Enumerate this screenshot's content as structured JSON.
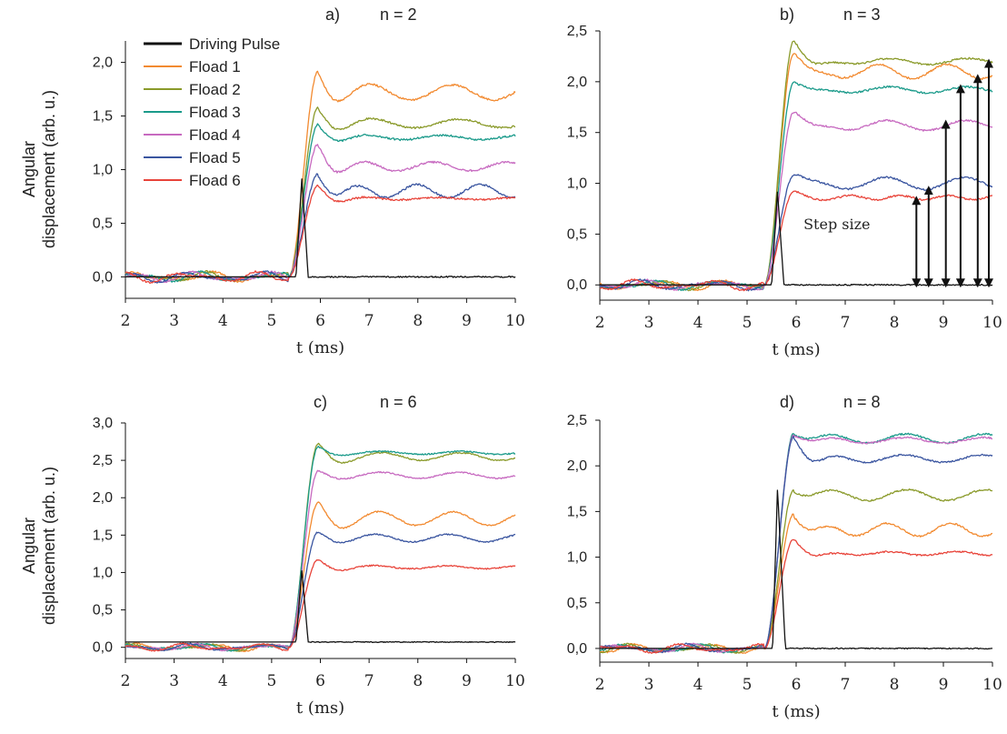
{
  "chart_data": [
    {
      "type": "line",
      "panel_label": "a)",
      "title": "n = 2",
      "xlabel": "t (ms)",
      "ylabel": [
        "Angular",
        "displacement (arb. u.)"
      ],
      "xlim": [
        2,
        10
      ],
      "ylim": [
        -0.2,
        2.2
      ],
      "x_ticks": [
        2,
        3,
        4,
        5,
        6,
        7,
        8,
        9,
        10
      ],
      "y_ticks": [
        0.0,
        0.5,
        1.0,
        1.5,
        2.0
      ],
      "y_tick_labels": [
        "0,0",
        "0,5",
        "1,0",
        "1,5",
        "2,0"
      ],
      "legend": {
        "placement": "top-left",
        "entries": [
          "Driving Pulse",
          "Fload 1",
          "Fload 2",
          "Fload 3",
          "Fload 4",
          "Fload 5",
          "Fload 6"
        ]
      },
      "series": [
        {
          "name": "Driving Pulse",
          "color": "#111111",
          "peak": 0.92,
          "rise_start": 5.5,
          "peak_time": 5.62,
          "fall_end": 5.75,
          "baseline": 0.0
        },
        {
          "name": "Fload 1",
          "color": "#f28a30",
          "steady": 1.72,
          "overshoot": 1.92,
          "osc_amp": 0.07,
          "osc_period": 1.7
        },
        {
          "name": "Fload 2",
          "color": "#8a9a2a",
          "steady": 1.43,
          "overshoot": 1.58,
          "osc_amp": 0.04,
          "osc_period": 1.8
        },
        {
          "name": "Fload 3",
          "color": "#1a9a8a",
          "steady": 1.3,
          "overshoot": 1.42,
          "osc_amp": 0.02,
          "osc_period": 1.6
        },
        {
          "name": "Fload 4",
          "color": "#c76ac0",
          "steady": 1.03,
          "overshoot": 1.24,
          "osc_amp": 0.04,
          "osc_period": 1.5
        },
        {
          "name": "Fload 5",
          "color": "#3a55a0",
          "steady": 0.8,
          "overshoot": 0.96,
          "osc_amp": 0.06,
          "osc_period": 1.3
        },
        {
          "name": "Fload 6",
          "color": "#e8443a",
          "steady": 0.73,
          "overshoot": 0.85,
          "osc_amp": 0.01,
          "osc_period": 1.6
        }
      ]
    },
    {
      "type": "line",
      "panel_label": "b)",
      "title": "n = 3",
      "xlabel": "t (ms)",
      "xlim": [
        2,
        10
      ],
      "ylim": [
        -0.15,
        2.5
      ],
      "x_ticks": [
        2,
        3,
        4,
        5,
        6,
        7,
        8,
        9,
        10
      ],
      "y_ticks": [
        0.0,
        0.5,
        1.0,
        1.5,
        2.0,
        2.5
      ],
      "y_tick_labels": [
        "0,0",
        "0,5",
        "1,0",
        "1,5",
        "2,0",
        "2,5"
      ],
      "annotation": "Step size",
      "step_arrows": [
        {
          "t": 8.45,
          "value": 0.85
        },
        {
          "t": 8.7,
          "value": 0.95
        },
        {
          "t": 9.05,
          "value": 1.6
        },
        {
          "t": 9.35,
          "value": 1.95
        },
        {
          "t": 9.7,
          "value": 2.05
        },
        {
          "t": 10.0,
          "value": 2.2
        }
      ],
      "series": [
        {
          "name": "Driving Pulse",
          "color": "#111111",
          "peak": 0.92,
          "rise_start": 5.5,
          "peak_time": 5.62,
          "fall_end": 5.75,
          "baseline": 0.0
        },
        {
          "name": "Fload 1",
          "color": "#f28a30",
          "steady": 2.1,
          "overshoot": 2.28,
          "osc_amp": 0.07,
          "osc_period": 1.4
        },
        {
          "name": "Fload 2",
          "color": "#8a9a2a",
          "steady": 2.2,
          "overshoot": 2.4,
          "osc_amp": 0.03,
          "osc_period": 1.6
        },
        {
          "name": "Fload 3",
          "color": "#1a9a8a",
          "steady": 1.92,
          "overshoot": 1.99,
          "osc_amp": 0.03,
          "osc_period": 1.6
        },
        {
          "name": "Fload 4",
          "color": "#c76ac0",
          "steady": 1.57,
          "overshoot": 1.7,
          "osc_amp": 0.05,
          "osc_period": 1.6
        },
        {
          "name": "Fload 5",
          "color": "#3a55a0",
          "steady": 1.0,
          "overshoot": 1.08,
          "osc_amp": 0.06,
          "osc_period": 1.6
        },
        {
          "name": "Fload 6",
          "color": "#e8443a",
          "steady": 0.86,
          "overshoot": 0.92,
          "osc_amp": 0.02,
          "osc_period": 1.0
        }
      ]
    },
    {
      "type": "line",
      "panel_label": "c)",
      "title": "n = 6",
      "xlabel": "t (ms)",
      "ylabel": [
        "Angular",
        "displacement (arb. u.)"
      ],
      "xlim": [
        2,
        10
      ],
      "ylim": [
        -0.15,
        3.0
      ],
      "x_ticks": [
        2,
        3,
        4,
        5,
        6,
        7,
        8,
        9,
        10
      ],
      "y_ticks": [
        0.0,
        0.5,
        1.0,
        1.5,
        2.0,
        2.5,
        3.0
      ],
      "y_tick_labels": [
        "0,0",
        "0,5",
        "1,0",
        "1,5",
        "2,0",
        "2,5",
        "3,0"
      ],
      "series": [
        {
          "name": "Driving Pulse",
          "color": "#111111",
          "peak": 1.03,
          "rise_start": 5.5,
          "peak_time": 5.62,
          "fall_end": 5.75,
          "baseline": 0.07
        },
        {
          "name": "Fload 1",
          "color": "#f28a30",
          "steady": 1.72,
          "overshoot": 1.93,
          "osc_amp": 0.09,
          "osc_period": 1.5
        },
        {
          "name": "Fload 2",
          "color": "#8a9a2a",
          "steady": 2.55,
          "overshoot": 2.72,
          "osc_amp": 0.05,
          "osc_period": 1.6
        },
        {
          "name": "Fload 3",
          "color": "#1a9a8a",
          "steady": 2.6,
          "overshoot": 2.68,
          "osc_amp": 0.02,
          "osc_period": 1.6
        },
        {
          "name": "Fload 4",
          "color": "#c76ac0",
          "steady": 2.3,
          "overshoot": 2.36,
          "osc_amp": 0.04,
          "osc_period": 1.6
        },
        {
          "name": "Fload 5",
          "color": "#3a55a0",
          "steady": 1.46,
          "overshoot": 1.54,
          "osc_amp": 0.05,
          "osc_period": 1.5
        },
        {
          "name": "Fload 6",
          "color": "#e8443a",
          "steady": 1.07,
          "overshoot": 1.17,
          "osc_amp": 0.02,
          "osc_period": 1.5
        }
      ]
    },
    {
      "type": "line",
      "panel_label": "d)",
      "title": "n = 8",
      "xlabel": "t (ms)",
      "xlim": [
        2,
        10
      ],
      "ylim": [
        -0.15,
        2.5
      ],
      "x_ticks": [
        2,
        3,
        4,
        5,
        6,
        7,
        8,
        9,
        10
      ],
      "y_ticks": [
        0.0,
        0.5,
        1.0,
        1.5,
        2.0,
        2.5
      ],
      "y_tick_labels": [
        "0,0",
        "0,5",
        "1,0",
        "1,5",
        "2,0",
        "2,5"
      ],
      "series": [
        {
          "name": "Driving Pulse",
          "color": "#111111",
          "peak": 1.75,
          "rise_start": 5.52,
          "peak_time": 5.62,
          "fall_end": 5.78,
          "baseline": 0.0
        },
        {
          "name": "Fload 1",
          "color": "#f28a30",
          "steady": 1.3,
          "overshoot": 1.47,
          "osc_amp": 0.07,
          "osc_period": 1.3
        },
        {
          "name": "Fload 2",
          "color": "#8a9a2a",
          "steady": 1.68,
          "overshoot": 1.73,
          "osc_amp": 0.06,
          "osc_period": 1.6
        },
        {
          "name": "Fload 3",
          "color": "#1a9a8a",
          "steady": 2.3,
          "overshoot": 2.36,
          "osc_amp": 0.05,
          "osc_period": 1.6
        },
        {
          "name": "Fload 4",
          "color": "#c76ac0",
          "steady": 2.28,
          "overshoot": 2.34,
          "osc_amp": 0.03,
          "osc_period": 1.6
        },
        {
          "name": "Fload 5",
          "color": "#3a55a0",
          "steady": 2.08,
          "overshoot": 2.32,
          "osc_amp": 0.04,
          "osc_period": 1.6
        },
        {
          "name": "Fload 6",
          "color": "#e8443a",
          "steady": 1.04,
          "overshoot": 1.2,
          "osc_amp": 0.02,
          "osc_period": 1.4
        }
      ]
    }
  ]
}
